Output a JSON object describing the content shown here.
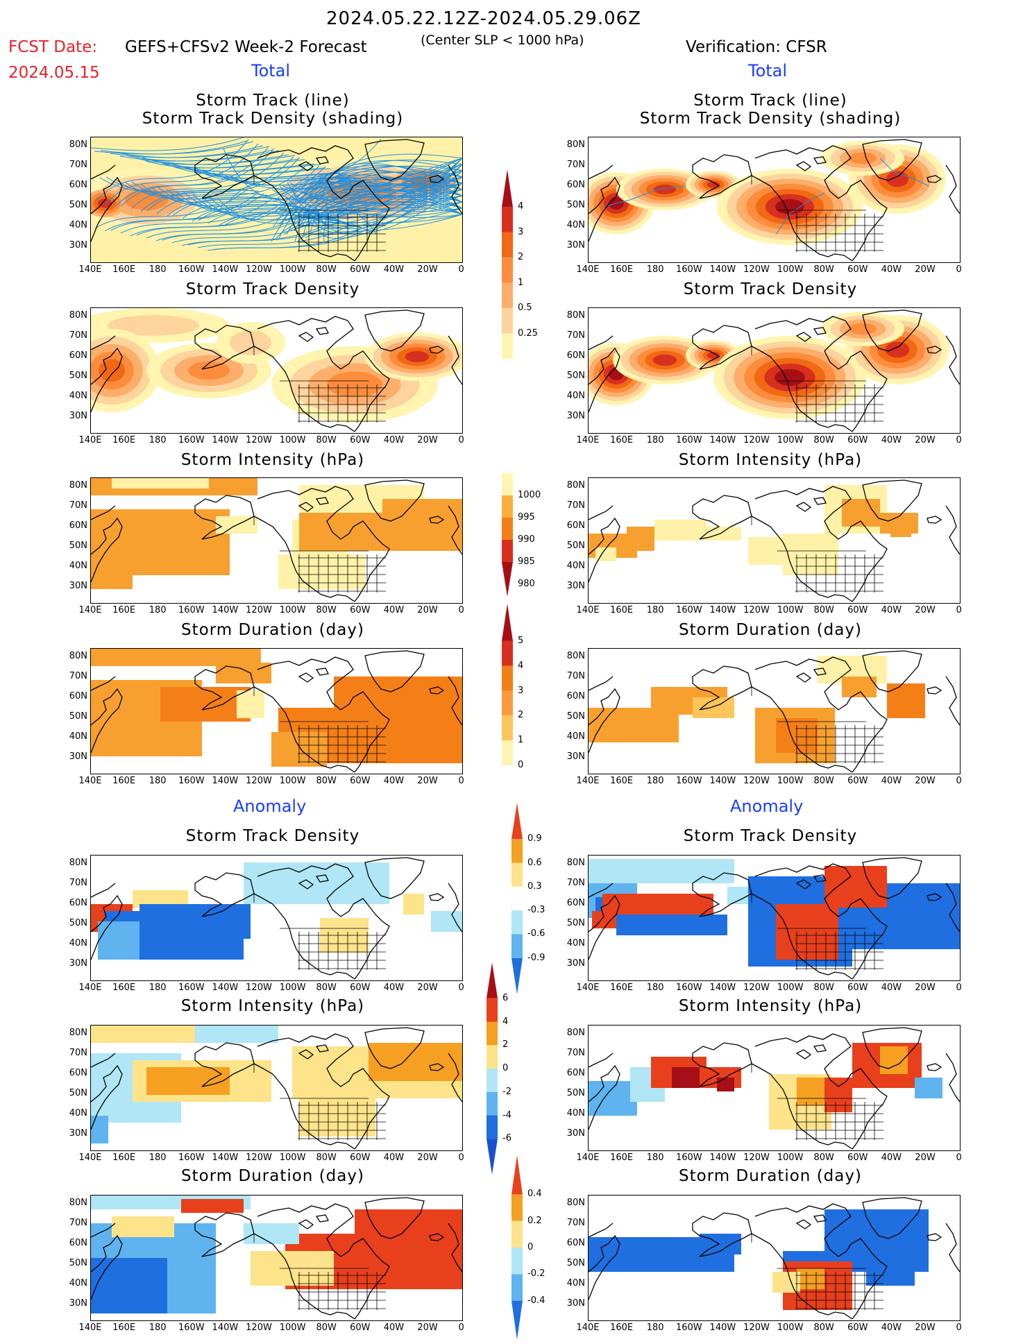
{
  "header": {
    "main_title": "2024.05.22.12Z-2024.05.29.06Z",
    "fcst_date_label": "FCST Date:",
    "fcst_date": "2024.05.15",
    "forecast_name": "GEFS+CFSv2 Week-2 Forecast",
    "criterion": "(Center SLP < 1000 hPa)",
    "verification": "Verification: CFSR",
    "total_left": "Total",
    "total_right": "Total",
    "anomaly_left": "Anomaly",
    "anomaly_right": "Anomaly"
  },
  "axes": {
    "lat_labels": [
      "80N",
      "70N",
      "60N",
      "50N",
      "40N",
      "30N"
    ],
    "lon_labels": [
      "140E",
      "160E",
      "180",
      "160W",
      "140W",
      "120W",
      "100W",
      "80W",
      "60W",
      "40W",
      "20W",
      "0"
    ]
  },
  "panels": {
    "track_left_l1": "Storm Track (line)",
    "track_left_l2": "Storm Track Density (shading)",
    "track_right_l1": "Storm Track (line)",
    "track_right_l2": "Storm Track Density (shading)",
    "density_left": "Storm Track Density",
    "density_right": "Storm Track Density",
    "intensity_left": "Storm Intensity (hPa)",
    "intensity_right": "Storm Intensity (hPa)",
    "duration_left": "Storm Duration (day)",
    "duration_right": "Storm Duration (day)",
    "anom_density_left": "Storm Track Density",
    "anom_density_right": "Storm Track Density",
    "anom_intensity_left": "Storm Intensity (hPa)",
    "anom_intensity_right": "Storm Intensity (hPa)",
    "anom_duration_left": "Storm Duration (day)",
    "anom_duration_right": "Storm Duration (day)"
  },
  "colorbars": {
    "density": {
      "labels": [
        "4",
        "3",
        "2",
        "1",
        "0.5",
        "0.25"
      ],
      "colors": [
        "#a50f15",
        "#d7301f",
        "#f16913",
        "#fd8d3c",
        "#fdae6b",
        "#fdd49e",
        "#fff5b0"
      ]
    },
    "intensity": {
      "labels": [
        "1000",
        "995",
        "990",
        "985",
        "980"
      ],
      "colors": [
        "#fff5b0",
        "#fdae3c",
        "#f57f17",
        "#d7301f",
        "#a50f15"
      ]
    },
    "duration": {
      "labels": [
        "5",
        "4",
        "3",
        "2",
        "1",
        "0"
      ],
      "colors": [
        "#a50f15",
        "#d7301f",
        "#f57f17",
        "#fd9b3c",
        "#fdc55a",
        "#fff5b0"
      ]
    },
    "anom_density": {
      "labels": [
        "0.9",
        "0.6",
        "0.3",
        "-0.3",
        "-0.6",
        "-0.9"
      ],
      "colors": [
        "#e8401c",
        "#f5a020",
        "#fde38a",
        "#ffffff",
        "#b0e6f5",
        "#5fb4f0",
        "#1f6fe0"
      ]
    },
    "anom_intensity": {
      "labels": [
        "6",
        "4",
        "2",
        "0",
        "-2",
        "-4",
        "-6"
      ],
      "colors": [
        "#a50f15",
        "#e8401c",
        "#f5a020",
        "#fde38a",
        "#b0e6f5",
        "#5fb4f0",
        "#1f6fe0",
        "#1a4fd0"
      ]
    },
    "anom_duration": {
      "labels": [
        "0.4",
        "0.2",
        "0",
        "-0.2",
        "-0.4"
      ],
      "colors": [
        "#e8401c",
        "#f5a020",
        "#fde38a",
        "#b0e6f5",
        "#5fb4f0",
        "#1f6fe0"
      ]
    }
  }
}
